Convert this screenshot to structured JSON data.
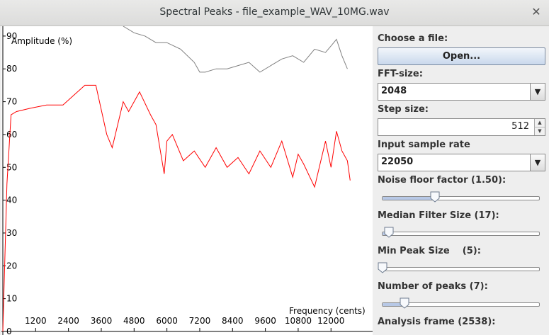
{
  "window": {
    "title": "Spectral Peaks - file_example_WAV_10MG.wav",
    "close_glyph": "✕"
  },
  "plot": {
    "y_axis_label": "Amplitude (%)",
    "x_axis_label": "Frequency (cents)",
    "y_ticks": [
      "90",
      "80",
      "70",
      "60",
      "50",
      "40",
      "30",
      "20",
      "10",
      "0"
    ],
    "x_ticks": [
      "1200",
      "2400",
      "3600",
      "4800",
      "6000",
      "7200",
      "8400",
      "9600",
      "10800",
      "12000"
    ],
    "noise_floor_color": "#808080",
    "spectrum_color": "#ff0000"
  },
  "chart_data": {
    "type": "line",
    "xlabel": "Frequency (cents)",
    "ylabel": "Amplitude (%)",
    "xlim": [
      0,
      12900
    ],
    "ylim": [
      0,
      93
    ],
    "series": [
      {
        "color": "#808080",
        "x": [
          4400,
          4800,
          5200,
          5600,
          6000,
          6500,
          7000,
          7200,
          7400,
          7800,
          8200,
          8600,
          9000,
          9400,
          9800,
          10200,
          10600,
          11000,
          11400,
          11800,
          12000,
          12200,
          12400,
          12600
        ],
        "y": [
          93,
          91,
          90,
          88,
          88,
          86,
          82,
          79,
          79,
          80,
          80,
          81,
          82,
          79,
          81,
          83,
          84,
          82,
          86,
          85,
          87,
          89,
          84,
          80
        ]
      },
      {
        "color": "#ff0000",
        "x": [
          0,
          150,
          300,
          500,
          1000,
          1600,
          2200,
          2600,
          3000,
          3400,
          3800,
          4000,
          4400,
          4600,
          5000,
          5400,
          5600,
          5900,
          6000,
          6200,
          6600,
          7000,
          7400,
          7800,
          8200,
          8600,
          9000,
          9400,
          9800,
          10200,
          10600,
          10800,
          11000,
          11400,
          11800,
          12000,
          12200,
          12400,
          12600,
          12700
        ],
        "y": [
          0,
          45,
          66,
          67,
          68,
          69,
          69,
          72,
          75,
          75,
          60,
          56,
          70,
          67,
          73,
          66,
          63,
          48,
          58,
          60,
          52,
          55,
          50,
          56,
          50,
          53,
          48,
          55,
          50,
          58,
          47,
          54,
          51,
          44,
          58,
          50,
          61,
          55,
          52,
          46
        ]
      }
    ]
  },
  "controls": {
    "choose_file_label": "Choose a file:",
    "open_button": "Open...",
    "fft_size_label": "FFT-size:",
    "fft_size_value": "2048",
    "step_size_label": "Step size:",
    "step_size_value": "512",
    "sample_rate_label": "Input sample rate",
    "sample_rate_value": "22050",
    "noise_floor_label": "Noise floor factor (1.50):",
    "noise_floor_level": 0.33,
    "median_filter_label": "Median Filter Size (17):",
    "median_filter_level": 0.04,
    "min_peak_label": "Min Peak Size    (5):",
    "min_peak_level": 0.0,
    "num_peaks_label": "Number of peaks (7):",
    "num_peaks_level": 0.14,
    "analysis_frame_label": "Analysis frame (2538):"
  }
}
